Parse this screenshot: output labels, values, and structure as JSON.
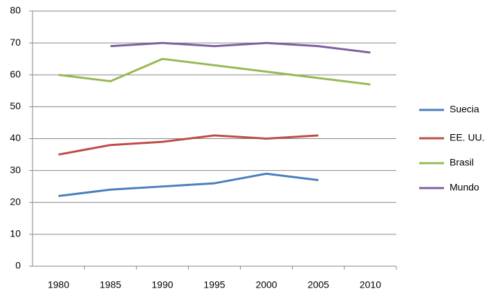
{
  "chart_data": {
    "type": "line",
    "categories": [
      "1980",
      "1985",
      "1990",
      "1995",
      "2000",
      "2005",
      "2010"
    ],
    "series": [
      {
        "name": "Suecia",
        "color": "#4a7ebb",
        "values": [
          22,
          24,
          25,
          26,
          29,
          27,
          null
        ]
      },
      {
        "name": "EE. UU.",
        "color": "#be4b48",
        "values": [
          35,
          38,
          39,
          41,
          40,
          41,
          null
        ]
      },
      {
        "name": "Brasil",
        "color": "#98b954",
        "values": [
          60,
          58,
          65,
          63,
          61,
          59,
          57
        ]
      },
      {
        "name": "Mundo",
        "color": "#7d60a0",
        "values": [
          null,
          69,
          70,
          69,
          70,
          69,
          67
        ]
      }
    ],
    "ylim": [
      0,
      80
    ],
    "yticks": [
      0,
      10,
      20,
      30,
      40,
      50,
      60,
      70,
      80
    ],
    "grid": true,
    "legend": "right"
  }
}
